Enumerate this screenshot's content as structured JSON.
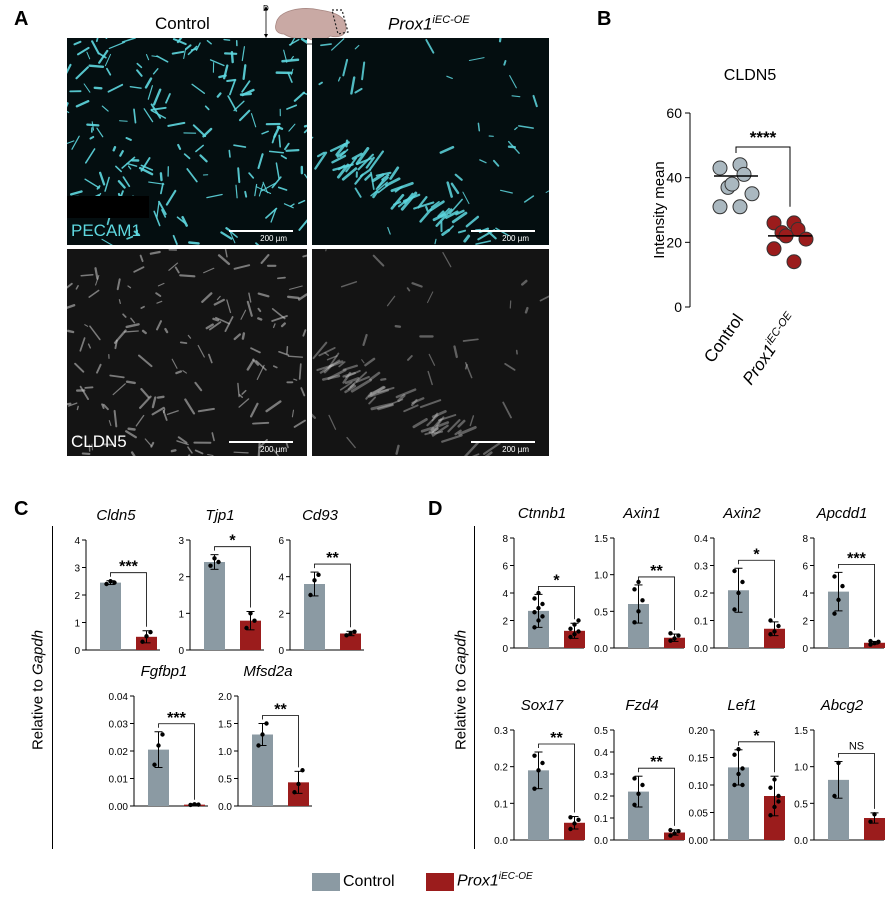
{
  "panel_a": {
    "letter": "A",
    "col_control": "Control",
    "col_prox1_main": "Prox1",
    "col_prox1_sup": "iEC-OE",
    "orientation": {
      "d": "D",
      "v": "V",
      "p": "P",
      "a": "A"
    },
    "label_pecam1": "PECAM1",
    "label_cldn5": "CLDN5",
    "scalebar_text": "200 µm",
    "pecam_color": "#5ed8e0"
  },
  "panel_b": {
    "letter": "B",
    "chart_data": {
      "type": "scatter",
      "title": "CLDN5",
      "ylabel": "Intensity mean",
      "ylim": [
        0,
        60
      ],
      "yticks": [
        "0",
        "20",
        "40",
        "60"
      ],
      "categories": [
        "Control",
        "Prox1"
      ],
      "category_sup": [
        "",
        "iEC-OE"
      ],
      "significance": "****",
      "series": [
        {
          "color": "#aab8c0",
          "mean": 40.5,
          "values": [
            43,
            44,
            41,
            37,
            38,
            35,
            31,
            31
          ]
        },
        {
          "color": "#9b1c1c",
          "mean": 22,
          "values": [
            26,
            26,
            24,
            23,
            22,
            21,
            18,
            14
          ]
        }
      ]
    }
  },
  "panel_c": {
    "letter": "C",
    "ylabel_prefix": "Relative to ",
    "ylabel_gene": "Gapdh",
    "charts": [
      {
        "gene": "Cldn5",
        "ylim": [
          0,
          4
        ],
        "yticks": [
          "0",
          "1",
          "2",
          "3",
          "4"
        ],
        "control": 2.45,
        "control_err": 0.07,
        "prox": 0.48,
        "prox_err": 0.22,
        "control_pts": [
          2.4,
          2.5,
          2.45
        ],
        "prox_pts": [
          0.3,
          0.5,
          0.65
        ],
        "sig": "***"
      },
      {
        "gene": "Tjp1",
        "ylim": [
          0,
          3
        ],
        "yticks": [
          "0",
          "1",
          "2",
          "3"
        ],
        "control": 2.4,
        "control_err": 0.2,
        "prox": 0.8,
        "prox_err": 0.25,
        "control_pts": [
          2.3,
          2.5,
          2.4
        ],
        "prox_pts": [
          0.6,
          1.0,
          0.8
        ],
        "sig": "*"
      },
      {
        "gene": "Cd93",
        "ylim": [
          0,
          6
        ],
        "yticks": [
          "0",
          "2",
          "4",
          "6"
        ],
        "control": 3.6,
        "control_err": 0.65,
        "prox": 0.9,
        "prox_err": 0.12,
        "control_pts": [
          3.0,
          3.8,
          4.1
        ],
        "prox_pts": [
          0.8,
          0.9,
          1.0
        ],
        "sig": "**"
      },
      {
        "gene": "Fgfbp1",
        "ylim": [
          0,
          0.04
        ],
        "yticks": [
          "0.00",
          "0.01",
          "0.02",
          "0.03",
          "0.04"
        ],
        "control": 0.0205,
        "control_err": 0.0065,
        "prox": 0.0005,
        "prox_err": 0.0003,
        "control_pts": [
          0.015,
          0.022,
          0.026
        ],
        "prox_pts": [
          0.0004,
          0.0006,
          0.0005
        ],
        "sig": "***"
      },
      {
        "gene": "Mfsd2a",
        "ylim": [
          0,
          2
        ],
        "yticks": [
          "0.0",
          "0.5",
          "1.0",
          "1.5",
          "2.0"
        ],
        "control": 1.3,
        "control_err": 0.2,
        "prox": 0.43,
        "prox_err": 0.2,
        "control_pts": [
          1.1,
          1.3,
          1.5
        ],
        "prox_pts": [
          0.25,
          0.4,
          0.65
        ],
        "sig": "**"
      }
    ]
  },
  "panel_d": {
    "letter": "D",
    "ylabel_prefix": "Relative to ",
    "ylabel_gene": "Gapdh",
    "charts": [
      {
        "gene": "Ctnnb1",
        "ylim": [
          0,
          8
        ],
        "yticks": [
          "0",
          "2",
          "4",
          "6",
          "8"
        ],
        "control": 2.7,
        "control_err": 1.2,
        "prox": 1.25,
        "prox_err": 0.55,
        "control_pts": [
          1.5,
          2.0,
          2.3,
          2.6,
          2.9,
          3.2,
          3.6,
          4.0
        ],
        "prox_pts": [
          0.8,
          1.0,
          1.2,
          1.4,
          1.7,
          2.0
        ],
        "sig": "*"
      },
      {
        "gene": "Axin1",
        "ylim": [
          0,
          1.5
        ],
        "yticks": [
          "0.0",
          "0.5",
          "1.0",
          "1.5"
        ],
        "control": 0.6,
        "control_err": 0.26,
        "prox": 0.14,
        "prox_err": 0.05,
        "control_pts": [
          0.35,
          0.5,
          0.65,
          0.8,
          0.9
        ],
        "prox_pts": [
          0.1,
          0.13,
          0.17,
          0.2
        ],
        "sig": "**"
      },
      {
        "gene": "Axin2",
        "ylim": [
          0,
          0.4
        ],
        "yticks": [
          "0.0",
          "0.1",
          "0.2",
          "0.3",
          "0.4"
        ],
        "control": 0.21,
        "control_err": 0.08,
        "prox": 0.07,
        "prox_err": 0.025,
        "control_pts": [
          0.14,
          0.2,
          0.24,
          0.28
        ],
        "prox_pts": [
          0.05,
          0.06,
          0.08,
          0.1
        ],
        "sig": "*"
      },
      {
        "gene": "Apcdd1",
        "ylim": [
          0,
          8
        ],
        "yticks": [
          "0",
          "2",
          "4",
          "6",
          "8"
        ],
        "control": 4.1,
        "control_err": 1.4,
        "prox": 0.38,
        "prox_err": 0.1,
        "control_pts": [
          2.5,
          3.5,
          4.5,
          5.2
        ],
        "prox_pts": [
          0.25,
          0.35,
          0.45,
          0.5
        ],
        "sig": "***"
      },
      {
        "gene": "Sox17",
        "ylim": [
          0,
          0.3
        ],
        "yticks": [
          "0.0",
          "0.1",
          "0.2",
          "0.3"
        ],
        "control": 0.19,
        "control_err": 0.05,
        "prox": 0.047,
        "prox_err": 0.017,
        "control_pts": [
          0.14,
          0.19,
          0.21,
          0.23
        ],
        "prox_pts": [
          0.03,
          0.045,
          0.055,
          0.062
        ],
        "sig": "**"
      },
      {
        "gene": "Fzd4",
        "ylim": [
          0,
          0.5
        ],
        "yticks": [
          "0.0",
          "0.1",
          "0.2",
          "0.3",
          "0.4",
          "0.5"
        ],
        "control": 0.22,
        "control_err": 0.07,
        "prox": 0.034,
        "prox_err": 0.012,
        "control_pts": [
          0.16,
          0.21,
          0.25,
          0.28
        ],
        "prox_pts": [
          0.02,
          0.03,
          0.04,
          0.045
        ],
        "sig": "**"
      },
      {
        "gene": "Lef1",
        "ylim": [
          0,
          0.2
        ],
        "yticks": [
          "0.00",
          "0.05",
          "0.10",
          "0.15",
          "0.20"
        ],
        "control": 0.132,
        "control_err": 0.032,
        "prox": 0.08,
        "prox_err": 0.036,
        "control_pts": [
          0.1,
          0.12,
          0.13,
          0.155,
          0.165,
          0.1
        ],
        "prox_pts": [
          0.045,
          0.06,
          0.08,
          0.095,
          0.11,
          0.07
        ],
        "sig": "*"
      },
      {
        "gene": "Abcg2",
        "ylim": [
          0,
          1.5
        ],
        "yticks": [
          "0.0",
          "0.5",
          "1.0",
          "1.5"
        ],
        "control": 0.82,
        "control_err": 0.25,
        "prox": 0.3,
        "prox_err": 0.07,
        "control_pts": [
          0.6,
          1.05
        ],
        "prox_pts": [
          0.25,
          0.35
        ],
        "sig": "NS"
      }
    ]
  },
  "legend": {
    "control_label": "Control",
    "prox_main": "Prox1",
    "prox_sup": "iEC-OE",
    "control_color": "#8b9aa3",
    "prox_color": "#9b1c1c"
  }
}
